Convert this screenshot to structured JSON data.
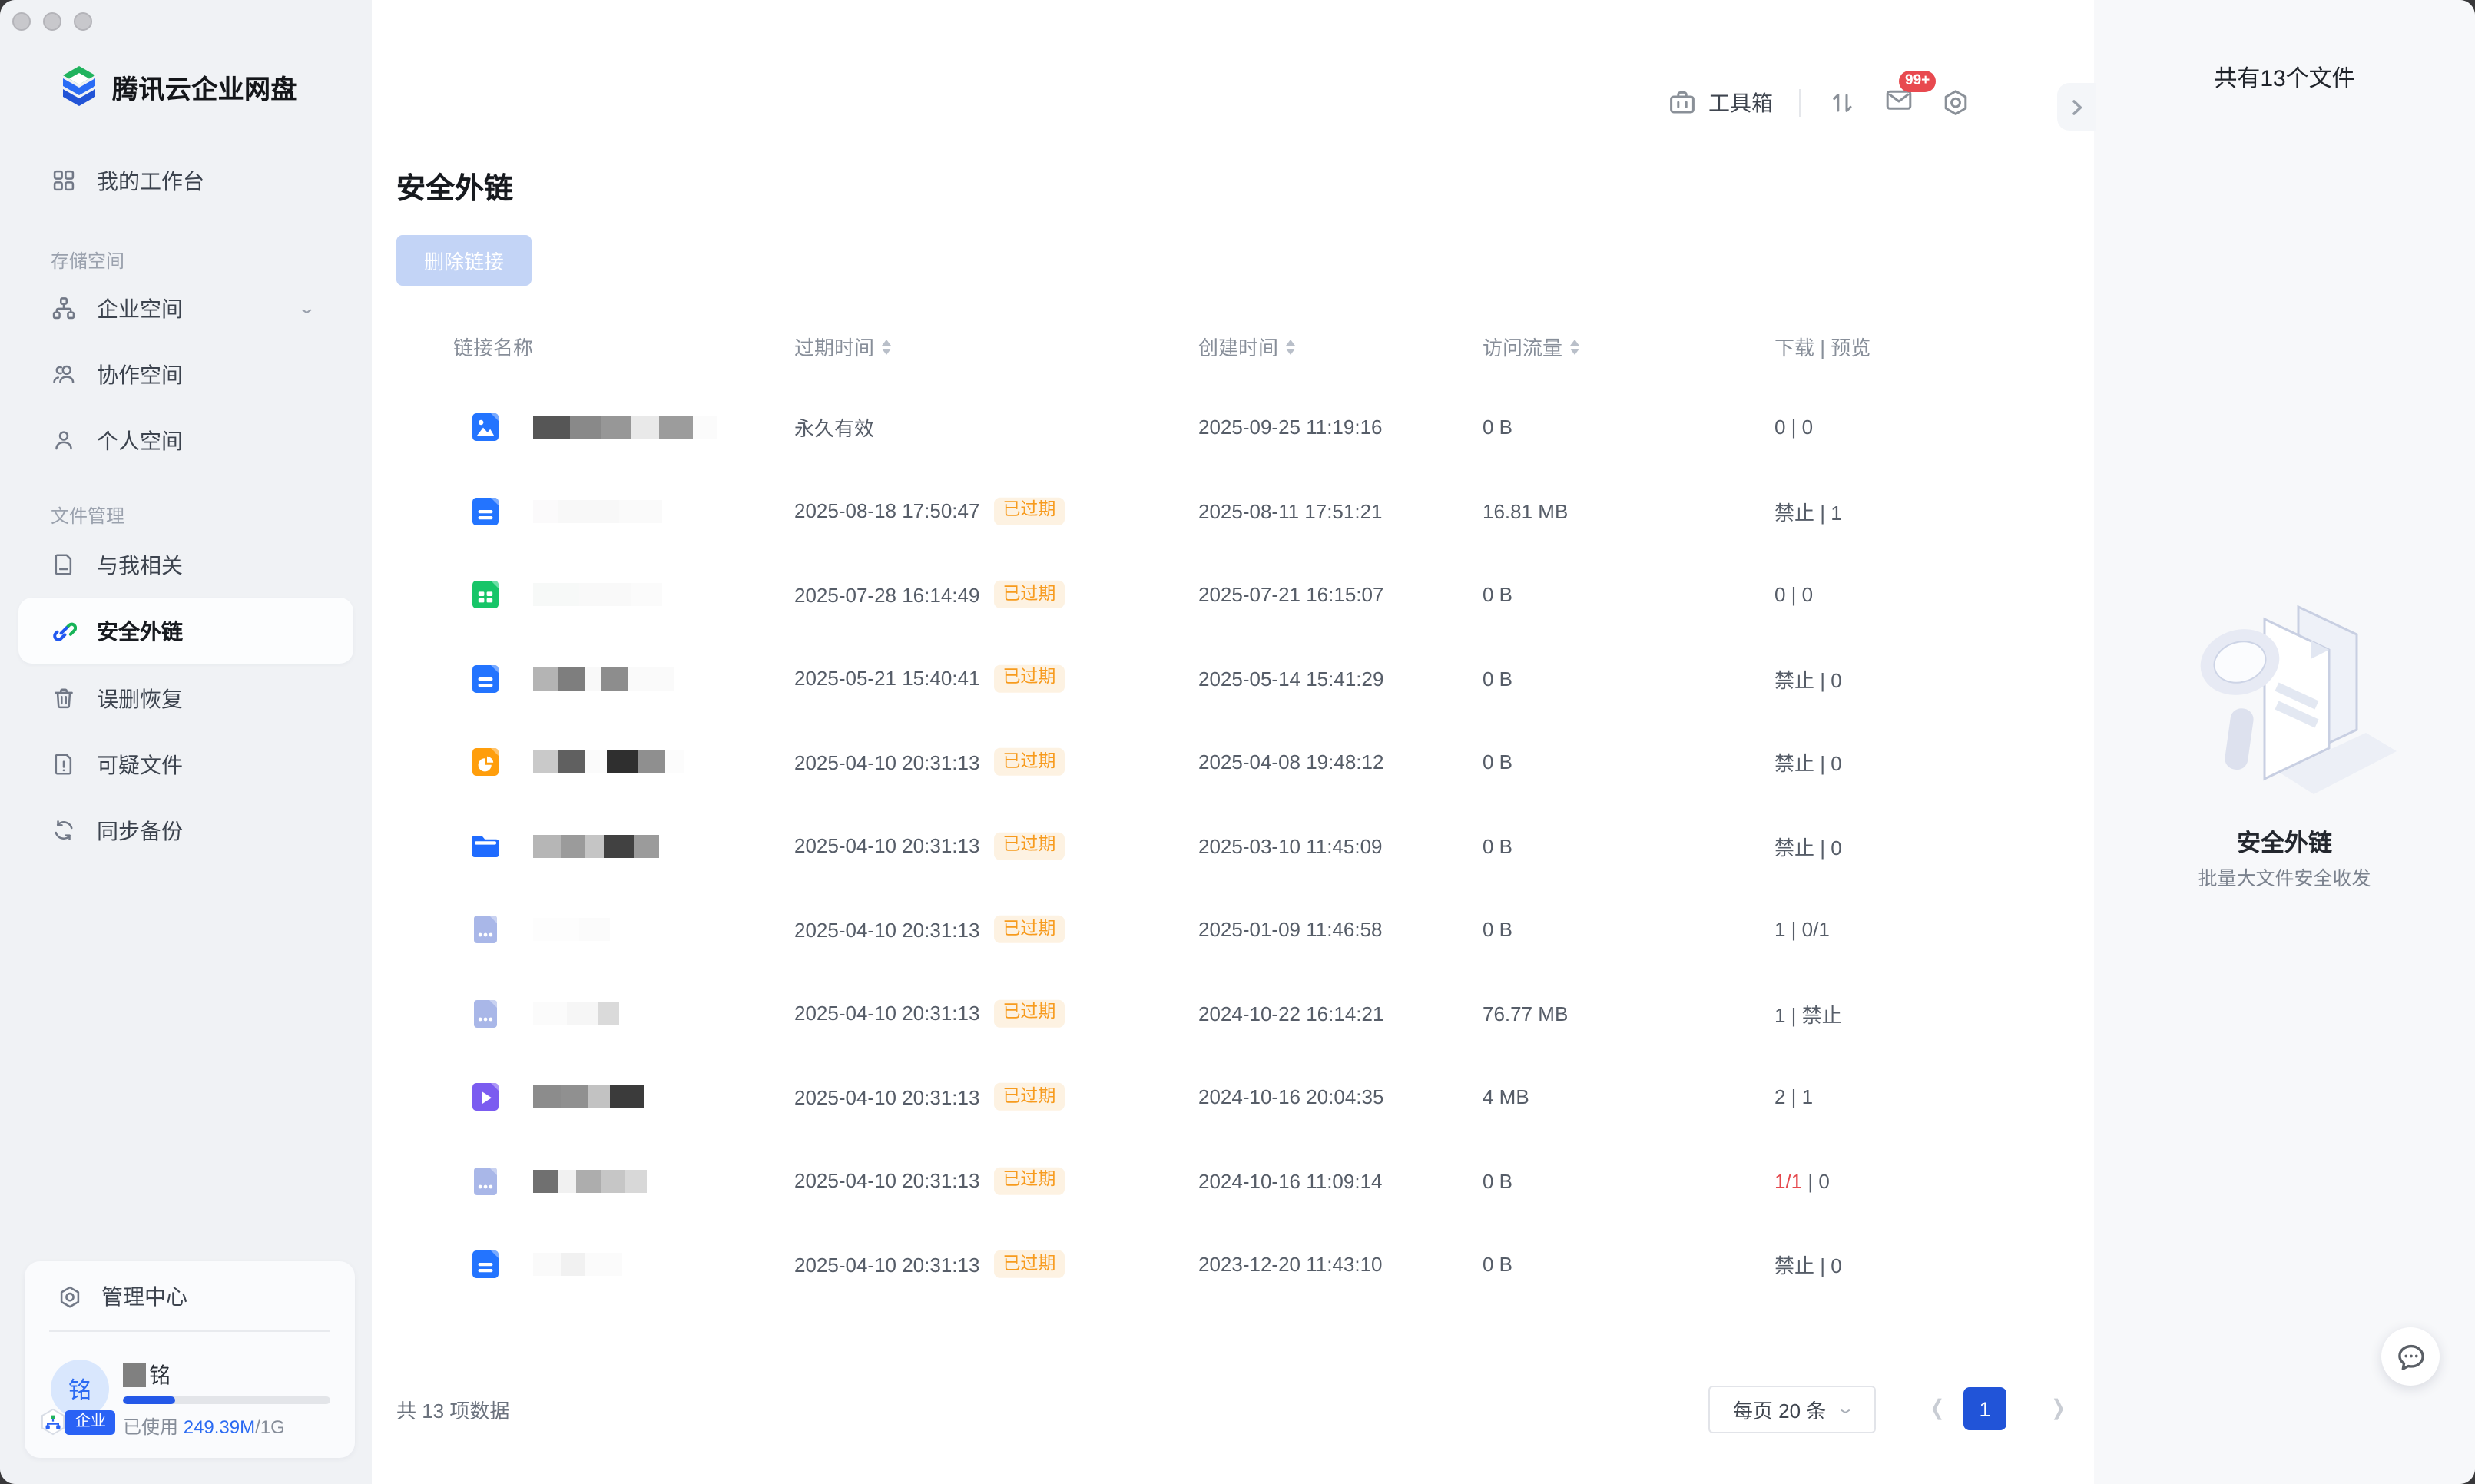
{
  "window": {
    "controls": [
      "close",
      "minimize",
      "zoom"
    ]
  },
  "sidebar": {
    "logo_text": "腾讯云企业网盘",
    "workbench": {
      "label": "我的工作台"
    },
    "sections": [
      {
        "label": "存储空间",
        "items": [
          {
            "label": "企业空间",
            "icon": "org-icon",
            "expandable": true
          },
          {
            "label": "协作空间",
            "icon": "people-icon"
          },
          {
            "label": "个人空间",
            "icon": "person-icon"
          }
        ]
      },
      {
        "label": "文件管理",
        "items": [
          {
            "label": "与我相关",
            "icon": "doc-icon"
          },
          {
            "label": "安全外链",
            "icon": "link-icon",
            "active": true
          },
          {
            "label": "误删恢复",
            "icon": "trash-icon"
          },
          {
            "label": "可疑文件",
            "icon": "doc-alert-icon"
          },
          {
            "label": "同步备份",
            "icon": "sync-icon"
          }
        ]
      }
    ],
    "admin": {
      "label": "管理中心"
    },
    "user": {
      "avatar_char": "铭",
      "name_redacted": true,
      "name_suffix": "铭",
      "org_badge": "企业",
      "usage_label": "已使用",
      "usage_value": "249.39M",
      "usage_total": "/1G",
      "progress_pct": 25
    }
  },
  "topbar": {
    "toolbox_label": "工具箱",
    "mail_badge": "99+"
  },
  "main": {
    "title": "安全外链",
    "delete_button": "删除链接",
    "table": {
      "headers": [
        "链接名称",
        "过期时间",
        "创建时间",
        "访问流量",
        "下载 | 预览"
      ],
      "expired_badge_label": "已过期",
      "rows": [
        {
          "icon": "image",
          "name_blocks": [
            [
              "#565656",
              24
            ],
            [
              "#898989",
              20
            ],
            [
              "#979797",
              20
            ],
            [
              "#e9e9e9",
              18
            ],
            [
              "#9c9c9c",
              22
            ],
            [
              "#fbfbfb",
              16
            ]
          ],
          "expire": "永久有效",
          "expired": false,
          "created": "2025-09-25 11:19:16",
          "traffic": "0 B",
          "downloads": [
            {
              "text": "0 | 0"
            }
          ]
        },
        {
          "icon": "doc",
          "name_blocks": [
            [
              "#fbfafb",
              16
            ],
            [
              "#f8f8f8",
              40
            ],
            [
              "#fafafa",
              28
            ]
          ],
          "expire": "2025-08-18 17:50:47",
          "expired": true,
          "created": "2025-08-11 17:51:21",
          "traffic": "16.81 MB",
          "downloads": [
            {
              "text": "禁止 | 1"
            }
          ]
        },
        {
          "icon": "sheet",
          "name_blocks": [
            [
              "#f7f9f8",
              30
            ],
            [
              "#f9f9f9",
              34
            ],
            [
              "#fbfbfb",
              20
            ]
          ],
          "expire": "2025-07-28 16:14:49",
          "expired": true,
          "created": "2025-07-21 16:15:07",
          "traffic": "0 B",
          "downloads": [
            {
              "text": "0 | 0"
            }
          ]
        },
        {
          "icon": "doc",
          "name_blocks": [
            [
              "#b4b4b4",
              16
            ],
            [
              "#7e7e7e",
              18
            ],
            [
              "#f9f9f9",
              10
            ],
            [
              "#8d8d8d",
              18
            ],
            [
              "#fafafa",
              30
            ]
          ],
          "expire": "2025-05-21 15:40:41",
          "expired": true,
          "created": "2025-05-14 15:41:29",
          "traffic": "0 B",
          "downloads": [
            {
              "text": "禁止 | 0"
            }
          ]
        },
        {
          "icon": "slides",
          "name_blocks": [
            [
              "#c9c9c9",
              16
            ],
            [
              "#606060",
              18
            ],
            [
              "#fbfbfb",
              14
            ],
            [
              "#2f2f2f",
              20
            ],
            [
              "#8f8f8f",
              18
            ],
            [
              "#fcfcfc",
              12
            ]
          ],
          "expire": "2025-04-10 20:31:13",
          "expired": true,
          "created": "2025-04-08 19:48:12",
          "traffic": "0 B",
          "downloads": [
            {
              "text": "禁止 | 0"
            }
          ]
        },
        {
          "icon": "folder",
          "name_blocks": [
            [
              "#b6b6b6",
              18
            ],
            [
              "#9b9b9b",
              16
            ],
            [
              "#c5c5c5",
              12
            ],
            [
              "#414141",
              20
            ],
            [
              "#9b9b9b",
              16
            ]
          ],
          "expire": "2025-04-10 20:31:13",
          "expired": true,
          "created": "2025-03-10 11:45:09",
          "traffic": "0 B",
          "downloads": [
            {
              "text": "禁止 | 0"
            }
          ]
        },
        {
          "icon": "file",
          "name_blocks": [
            [
              "#fdfdfd",
              30
            ],
            [
              "#fbfbfb",
              20
            ]
          ],
          "expire": "2025-04-10 20:31:13",
          "expired": true,
          "created": "2025-01-09 11:46:58",
          "traffic": "0 B",
          "downloads": [
            {
              "text": "1 | 0/1"
            }
          ]
        },
        {
          "icon": "file",
          "name_blocks": [
            [
              "#fbfbfb",
              22
            ],
            [
              "#f6f6f6",
              20
            ],
            [
              "#dadada",
              14
            ]
          ],
          "expire": "2025-04-10 20:31:13",
          "expired": true,
          "created": "2024-10-22 16:14:21",
          "traffic": "76.77 MB",
          "downloads": [
            {
              "text": "1 | 禁止"
            }
          ]
        },
        {
          "icon": "video",
          "name_blocks": [
            [
              "#8c8c8c",
              18
            ],
            [
              "#909090",
              18
            ],
            [
              "#c2c2c2",
              14
            ],
            [
              "#3b3b3b",
              22
            ]
          ],
          "expire": "2025-04-10 20:31:13",
          "expired": true,
          "created": "2024-10-16 20:04:35",
          "traffic": "4 MB",
          "downloads": [
            {
              "text": "2 | 1"
            }
          ]
        },
        {
          "icon": "file",
          "name_blocks": [
            [
              "#707070",
              16
            ],
            [
              "#f1f1f1",
              12
            ],
            [
              "#adadad",
              16
            ],
            [
              "#c6c6c6",
              16
            ],
            [
              "#d8d8d8",
              14
            ]
          ],
          "expire": "2025-04-10 20:31:13",
          "expired": true,
          "created": "2024-10-16 11:09:14",
          "traffic": "0 B",
          "downloads": [
            {
              "text": "1/1",
              "red": true
            },
            {
              "text": " | 0"
            }
          ]
        },
        {
          "icon": "doc",
          "name_blocks": [
            [
              "#fafafa",
              18
            ],
            [
              "#f1f1f1",
              16
            ],
            [
              "#fbfbfb",
              24
            ]
          ],
          "expire": "2025-04-10 20:31:13",
          "expired": true,
          "created": "2023-12-20 11:43:10",
          "traffic": "0 B",
          "downloads": [
            {
              "text": "禁止 | 0"
            }
          ]
        }
      ]
    },
    "footer": {
      "total": "共 13 项数据",
      "page_size": "每页 20 条",
      "page": "1"
    }
  },
  "right_panel": {
    "header": "共有13个文件",
    "feature_title": "安全外链",
    "feature_subtitle": "批量大文件安全收发"
  },
  "colors": {
    "accent_blue": "#2154d8",
    "link_blue": "#2a6af2",
    "badge_orange_text": "#f79b1e",
    "badge_orange_bg": "#fdf2e2",
    "danger_red": "#e5484d",
    "notification_red": "#e8494f",
    "sidebar_bg": "#f0f2f5",
    "right_panel_bg": "#f7f8fa"
  }
}
